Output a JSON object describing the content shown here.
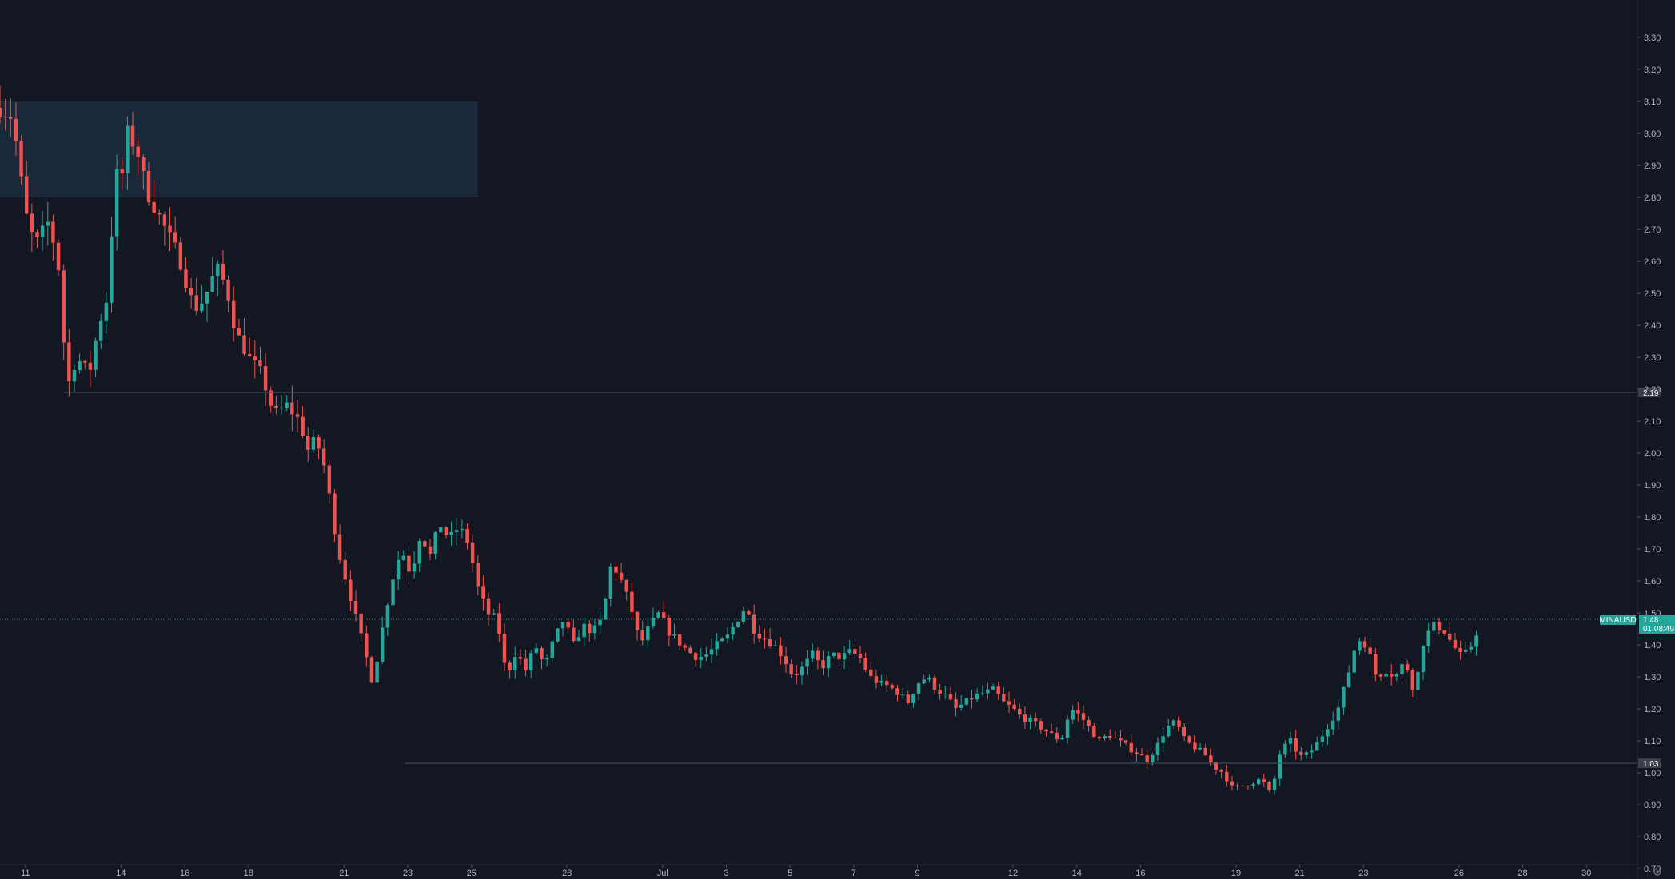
{
  "chart_data": {
    "type": "candlestick",
    "symbol_label": "MINAUSD",
    "last_price_label": "1.48",
    "countdown_label": "01:08:49",
    "colors": {
      "background": "#131722",
      "up": "#26a69a",
      "down": "#ef5350",
      "zone_fill": "#1c2b3d",
      "hline": "#4a5060",
      "hline_tag_bg": "#3b404d",
      "current_line": "#26a69a",
      "axis_text": "#b2b5be"
    },
    "y_axis": {
      "min": 0.7,
      "max": 3.33,
      "ticks": [
        "0.70",
        "0.80",
        "0.90",
        "1.00",
        "1.10",
        "1.20",
        "1.30",
        "1.40",
        "1.50",
        "1.60",
        "1.70",
        "1.80",
        "1.90",
        "2.00",
        "2.10",
        "2.20",
        "2.30",
        "2.40",
        "2.50",
        "2.60",
        "2.70",
        "2.80",
        "2.90",
        "3.00",
        "3.10",
        "3.20",
        "3.30"
      ]
    },
    "x_axis": {
      "min_day": 10.2,
      "max_day": 61.6,
      "ticks": [
        {
          "label": "11",
          "day": 11
        },
        {
          "label": "14",
          "day": 14
        },
        {
          "label": "16",
          "day": 16
        },
        {
          "label": "18",
          "day": 18
        },
        {
          "label": "21",
          "day": 21
        },
        {
          "label": "23",
          "day": 23
        },
        {
          "label": "25",
          "day": 25
        },
        {
          "label": "28",
          "day": 28
        },
        {
          "label": "Jul",
          "day": 31
        },
        {
          "label": "3",
          "day": 33
        },
        {
          "label": "5",
          "day": 35
        },
        {
          "label": "7",
          "day": 37
        },
        {
          "label": "9",
          "day": 39
        },
        {
          "label": "12",
          "day": 42
        },
        {
          "label": "14",
          "day": 44
        },
        {
          "label": "16",
          "day": 46
        },
        {
          "label": "19",
          "day": 49
        },
        {
          "label": "21",
          "day": 51
        },
        {
          "label": "23",
          "day": 53
        },
        {
          "label": "26",
          "day": 56
        },
        {
          "label": "28",
          "day": 58
        },
        {
          "label": "30",
          "day": 60
        }
      ]
    },
    "zones": [
      {
        "x_from_day": 10.2,
        "x_to_day": 25.2,
        "y_low": 2.8,
        "y_high": 3.1
      }
    ],
    "hlines": [
      {
        "value": 2.19,
        "label": "2.19",
        "from_day": 12.2
      },
      {
        "value": 1.03,
        "label": "1.03",
        "from_day": 22.9
      }
    ],
    "current_price": 1.48,
    "anchors": [
      [
        10.2,
        3.08
      ],
      [
        10.6,
        3.05
      ],
      [
        11.0,
        2.75
      ],
      [
        11.3,
        2.65
      ],
      [
        11.7,
        2.72
      ],
      [
        12.0,
        2.62
      ],
      [
        12.1,
        2.5
      ],
      [
        12.3,
        2.2
      ],
      [
        12.6,
        2.3
      ],
      [
        13.0,
        2.25
      ],
      [
        13.3,
        2.4
      ],
      [
        13.6,
        2.5
      ],
      [
        13.8,
        2.88
      ],
      [
        14.0,
        2.85
      ],
      [
        14.2,
        3.0
      ],
      [
        14.5,
        2.95
      ],
      [
        14.8,
        2.82
      ],
      [
        15.3,
        2.72
      ],
      [
        15.8,
        2.62
      ],
      [
        16.3,
        2.45
      ],
      [
        16.6,
        2.48
      ],
      [
        17.0,
        2.58
      ],
      [
        17.3,
        2.52
      ],
      [
        17.6,
        2.38
      ],
      [
        18.0,
        2.3
      ],
      [
        18.4,
        2.25
      ],
      [
        18.8,
        2.12
      ],
      [
        19.2,
        2.15
      ],
      [
        19.6,
        2.1
      ],
      [
        19.9,
        2.0
      ],
      [
        20.1,
        2.05
      ],
      [
        20.4,
        1.95
      ],
      [
        20.8,
        1.7
      ],
      [
        21.2,
        1.55
      ],
      [
        21.6,
        1.4
      ],
      [
        21.9,
        1.28
      ],
      [
        22.2,
        1.45
      ],
      [
        22.5,
        1.6
      ],
      [
        22.8,
        1.7
      ],
      [
        23.1,
        1.62
      ],
      [
        23.4,
        1.75
      ],
      [
        23.7,
        1.68
      ],
      [
        24.0,
        1.78
      ],
      [
        24.3,
        1.73
      ],
      [
        24.6,
        1.77
      ],
      [
        24.9,
        1.72
      ],
      [
        25.2,
        1.58
      ],
      [
        25.5,
        1.5
      ],
      [
        25.8,
        1.48
      ],
      [
        26.1,
        1.3
      ],
      [
        26.4,
        1.38
      ],
      [
        26.7,
        1.32
      ],
      [
        27.0,
        1.4
      ],
      [
        27.3,
        1.33
      ],
      [
        27.6,
        1.42
      ],
      [
        27.9,
        1.48
      ],
      [
        28.2,
        1.4
      ],
      [
        28.5,
        1.46
      ],
      [
        28.8,
        1.44
      ],
      [
        29.1,
        1.48
      ],
      [
        29.4,
        1.66
      ],
      [
        29.7,
        1.6
      ],
      [
        30.0,
        1.52
      ],
      [
        30.3,
        1.4
      ],
      [
        30.6,
        1.46
      ],
      [
        30.9,
        1.5
      ],
      [
        31.2,
        1.44
      ],
      [
        31.5,
        1.41
      ],
      [
        31.8,
        1.38
      ],
      [
        32.1,
        1.36
      ],
      [
        32.4,
        1.37
      ],
      [
        32.7,
        1.4
      ],
      [
        33.0,
        1.42
      ],
      [
        33.3,
        1.47
      ],
      [
        33.6,
        1.52
      ],
      [
        33.9,
        1.44
      ],
      [
        34.2,
        1.42
      ],
      [
        34.5,
        1.4
      ],
      [
        34.8,
        1.36
      ],
      [
        35.1,
        1.3
      ],
      [
        35.4,
        1.33
      ],
      [
        35.7,
        1.37
      ],
      [
        36.0,
        1.33
      ],
      [
        36.3,
        1.37
      ],
      [
        36.6,
        1.36
      ],
      [
        36.9,
        1.38
      ],
      [
        37.2,
        1.36
      ],
      [
        37.5,
        1.3
      ],
      [
        37.8,
        1.28
      ],
      [
        38.1,
        1.27
      ],
      [
        38.4,
        1.25
      ],
      [
        38.7,
        1.22
      ],
      [
        39.0,
        1.28
      ],
      [
        39.3,
        1.3
      ],
      [
        39.6,
        1.26
      ],
      [
        39.9,
        1.24
      ],
      [
        40.2,
        1.2
      ],
      [
        40.5,
        1.22
      ],
      [
        40.8,
        1.24
      ],
      [
        41.1,
        1.25
      ],
      [
        41.4,
        1.26
      ],
      [
        41.7,
        1.22
      ],
      [
        42.0,
        1.2
      ],
      [
        42.3,
        1.17
      ],
      [
        42.6,
        1.16
      ],
      [
        42.9,
        1.14
      ],
      [
        43.2,
        1.12
      ],
      [
        43.5,
        1.1
      ],
      [
        43.8,
        1.2
      ],
      [
        44.1,
        1.18
      ],
      [
        44.4,
        1.14
      ],
      [
        44.7,
        1.1
      ],
      [
        45.0,
        1.12
      ],
      [
        45.3,
        1.1
      ],
      [
        45.6,
        1.08
      ],
      [
        45.9,
        1.06
      ],
      [
        46.2,
        1.04
      ],
      [
        46.5,
        1.08
      ],
      [
        46.8,
        1.14
      ],
      [
        47.1,
        1.16
      ],
      [
        47.4,
        1.1
      ],
      [
        47.7,
        1.08
      ],
      [
        48.0,
        1.06
      ],
      [
        48.3,
        1.02
      ],
      [
        48.6,
        1.0
      ],
      [
        48.9,
        0.95
      ],
      [
        49.2,
        0.96
      ],
      [
        49.5,
        0.97
      ],
      [
        49.8,
        0.98
      ],
      [
        50.1,
        0.93
      ],
      [
        50.4,
        1.07
      ],
      [
        50.7,
        1.1
      ],
      [
        51.0,
        1.05
      ],
      [
        51.3,
        1.06
      ],
      [
        51.6,
        1.1
      ],
      [
        51.9,
        1.15
      ],
      [
        52.2,
        1.2
      ],
      [
        52.5,
        1.3
      ],
      [
        52.8,
        1.42
      ],
      [
        53.1,
        1.4
      ],
      [
        53.4,
        1.3
      ],
      [
        53.7,
        1.32
      ],
      [
        54.0,
        1.3
      ],
      [
        54.3,
        1.35
      ],
      [
        54.6,
        1.25
      ],
      [
        54.9,
        1.42
      ],
      [
        55.2,
        1.46
      ],
      [
        55.5,
        1.45
      ],
      [
        55.8,
        1.4
      ],
      [
        56.1,
        1.36
      ],
      [
        56.4,
        1.4
      ],
      [
        56.7,
        1.48
      ]
    ]
  }
}
